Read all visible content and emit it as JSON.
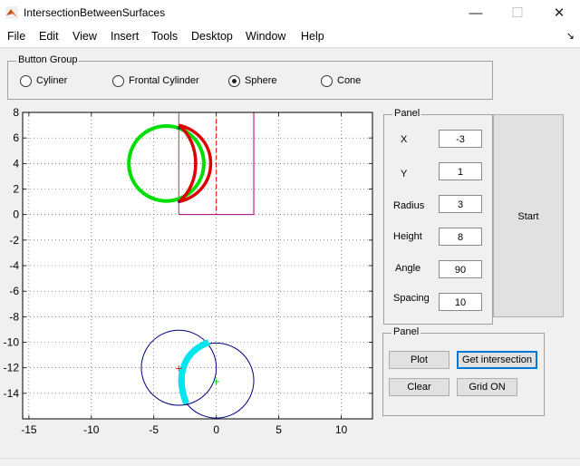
{
  "window": {
    "title": "IntersectionBetweenSurfaces",
    "minimize": "—",
    "maximize": "☐",
    "close": "✕"
  },
  "menu": {
    "items": [
      "File",
      "Edit",
      "View",
      "Insert",
      "Tools",
      "Desktop",
      "Window",
      "Help"
    ],
    "dock_arrow": "↘"
  },
  "button_group": {
    "title": "Button Group",
    "options": [
      {
        "label": "Cyliner",
        "selected": false
      },
      {
        "label": "Frontal Cylinder",
        "selected": false
      },
      {
        "label": "Sphere",
        "selected": true
      },
      {
        "label": "Cone",
        "selected": false
      }
    ]
  },
  "params_panel": {
    "title": "Panel",
    "fields": [
      {
        "label": "X",
        "value": "-3"
      },
      {
        "label": "Y",
        "value": "1"
      },
      {
        "label": "Radius",
        "value": "3"
      },
      {
        "label": "Height",
        "value": "8"
      },
      {
        "label": "Angle",
        "value": "90"
      },
      {
        "label": "Spacing",
        "value": "10"
      }
    ]
  },
  "start_button": "Start",
  "actions_panel": {
    "title": "Panel",
    "plot": "Plot",
    "get_intersection": "Get intersection",
    "clear": "Clear",
    "grid": "Grid ON"
  },
  "chart_data": {
    "type": "line",
    "xlim": [
      -15.5,
      12.5
    ],
    "ylim": [
      -16,
      8
    ],
    "xticks": [
      "-15",
      "-10",
      "-5",
      "0",
      "5",
      "10"
    ],
    "yticks": [
      "8",
      "6",
      "4",
      "2",
      "0",
      "-2",
      "-4",
      "-6",
      "-8",
      "-10",
      "-12",
      "-14"
    ],
    "grid": true,
    "colors": {
      "sphere_outline": "#00dd00",
      "intersection_upper": "#dd0000",
      "rectangle": "#aa0077",
      "lower_circles": "#000080",
      "intersection_lower": "#00e5ee",
      "marker_red": "#ff0000",
      "marker_green": "#00cc00"
    }
  }
}
